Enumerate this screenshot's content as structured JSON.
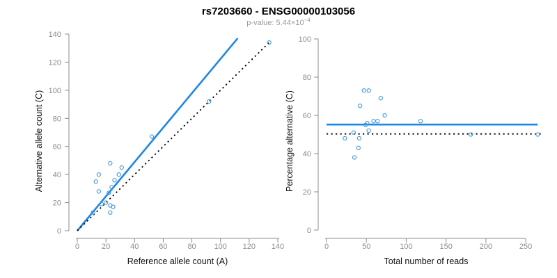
{
  "header": {
    "title": "rs7203660 - ENSG00000103056",
    "subtitle_main": "p-value: 5.44×10",
    "subtitle_exp": "−4"
  },
  "colors": {
    "fit_line": "#1E86E5",
    "point": "#4198D7",
    "reference_line": "#000000",
    "axis": "#8c8c8c",
    "tick_label": "#8c8c8c",
    "axis_title": "#111111",
    "subtitle": "#9a9a9a"
  },
  "chart_data": [
    {
      "type": "scatter",
      "name": "allele-counts",
      "xlabel": "Reference allele count (A)",
      "ylabel": "Alternative allele count (C)",
      "xlim": [
        0,
        140
      ],
      "ylim": [
        0,
        140
      ],
      "xticks": [
        0,
        20,
        40,
        60,
        80,
        100,
        120,
        140
      ],
      "yticks": [
        0,
        20,
        40,
        60,
        80,
        100,
        120,
        140
      ],
      "grid": false,
      "points": [
        [
          11,
          13
        ],
        [
          13,
          35
        ],
        [
          15,
          28
        ],
        [
          15,
          40
        ],
        [
          17,
          19
        ],
        [
          20,
          20
        ],
        [
          22,
          27
        ],
        [
          23,
          13
        ],
        [
          23,
          18
        ],
        [
          23,
          48
        ],
        [
          24,
          31
        ],
        [
          25,
          17
        ],
        [
          26,
          36
        ],
        [
          29,
          40
        ],
        [
          31,
          45
        ],
        [
          52,
          67
        ],
        [
          92,
          92
        ],
        [
          134,
          134
        ]
      ],
      "lines": [
        {
          "name": "fit-line",
          "style": "solid",
          "x1": 0,
          "y1": 0,
          "x2": 112,
          "y2": 137
        },
        {
          "name": "identity-line",
          "style": "dotted",
          "x1": 0,
          "y1": 0,
          "x2": 135,
          "y2": 135
        }
      ]
    },
    {
      "type": "scatter",
      "name": "percentage",
      "xlabel": "Total number of reads",
      "ylabel": "Percentage alternative (C)",
      "xlim": [
        0,
        270
      ],
      "ylim": [
        0,
        100
      ],
      "xticks": [
        0,
        50,
        100,
        150,
        200,
        250
      ],
      "yticks": [
        0,
        20,
        40,
        60,
        80,
        100
      ],
      "grid": false,
      "points": [
        [
          23,
          48
        ],
        [
          34,
          51
        ],
        [
          35,
          38
        ],
        [
          40,
          43
        ],
        [
          41,
          48
        ],
        [
          42,
          65
        ],
        [
          47,
          73
        ],
        [
          49,
          55
        ],
        [
          51,
          56
        ],
        [
          53,
          52
        ],
        [
          53,
          73
        ],
        [
          59,
          57
        ],
        [
          64,
          57
        ],
        [
          68,
          69
        ],
        [
          73,
          60
        ],
        [
          118,
          57
        ],
        [
          181,
          50
        ],
        [
          265,
          50
        ]
      ],
      "lines": [
        {
          "name": "fit-line",
          "style": "solid",
          "x1": 0,
          "y1": 55.2,
          "x2": 265,
          "y2": 55.2
        },
        {
          "name": "reference-line",
          "style": "dotted",
          "x1": 0,
          "y1": 50.3,
          "x2": 270,
          "y2": 50.3
        }
      ]
    }
  ]
}
